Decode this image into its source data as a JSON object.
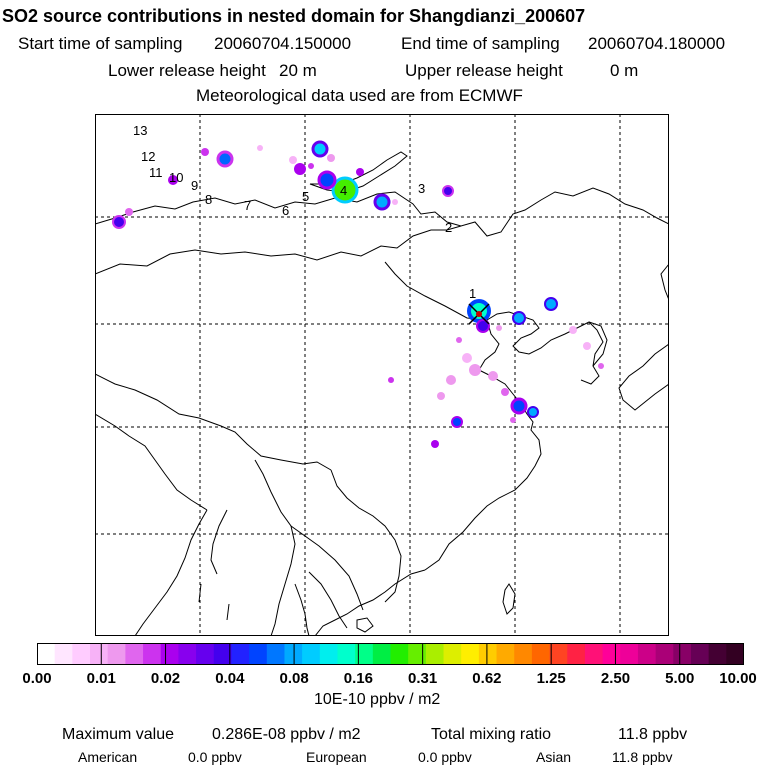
{
  "header": {
    "title": "SO2 source contributions in nested domain for Shangdianzi_200607",
    "start_label": "Start time of sampling",
    "start_value": "20060704.150000",
    "end_label": "End time of sampling",
    "end_value": "20060704.180000",
    "lower_label": "Lower release height",
    "lower_value": "20 m",
    "upper_label": "Upper release height",
    "upper_value": "0 m",
    "met_text": "Meteorological data used are from ECMWF"
  },
  "map": {
    "trajectory_labels": [
      "1",
      "2",
      "3",
      "4",
      "5",
      "6",
      "7",
      "8",
      "9",
      "10",
      "11",
      "12",
      "13"
    ]
  },
  "colorbar": {
    "ticks": [
      "0.00",
      "0.01",
      "0.02",
      "0.04",
      "0.08",
      "0.16",
      "0.31",
      "0.62",
      "1.25",
      "2.50",
      "5.00",
      "10.00"
    ],
    "colors": [
      "#ffffff",
      "#ffe6ff",
      "#ffccff",
      "#f7b2f7",
      "#ee99ee",
      "#e066ee",
      "#cc33ee",
      "#aa00ee",
      "#8800ee",
      "#6600ee",
      "#4400ee",
      "#2222ff",
      "#0044ff",
      "#0077ff",
      "#00aaff",
      "#00ccff",
      "#00eeee",
      "#00ffcc",
      "#00ff88",
      "#00ee44",
      "#22ee00",
      "#66ee00",
      "#aaee00",
      "#ddee00",
      "#ffee00",
      "#ffcc00",
      "#ffaa00",
      "#ff8800",
      "#ff6600",
      "#ff4422",
      "#ff2244",
      "#ff1177",
      "#ff0099",
      "#ee0099",
      "#cc0088",
      "#aa0077",
      "#880066",
      "#660055",
      "#440033",
      "#330022"
    ],
    "units": "10E-10 ppbv / m2"
  },
  "footer": {
    "max_label": "Maximum value",
    "max_value": "0.286E-08 ppbv / m2",
    "total_label": "Total mixing ratio",
    "total_value": "11.8 ppbv",
    "american_label": "American",
    "american_value": "0.0 ppbv",
    "european_label": "European",
    "european_value": "0.0 ppbv",
    "asian_label": "Asian",
    "asian_value": "11.8 ppbv"
  }
}
